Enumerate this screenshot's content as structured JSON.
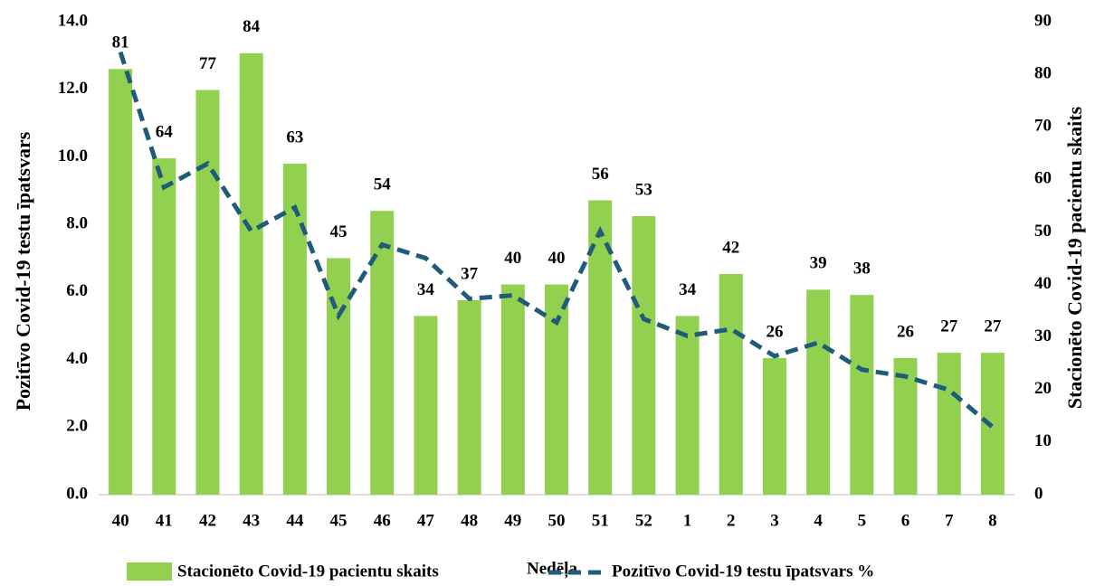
{
  "chart_data": {
    "type": "bar_line",
    "x_label": "Nedēļa",
    "y_label": "Pozitīvo Covid-19 testu īpatsvars",
    "y2_label": "Stacionēto Covid-19 pacientu skaits",
    "categories": [
      "40",
      "41",
      "42",
      "43",
      "44",
      "45",
      "46",
      "47",
      "48",
      "49",
      "50",
      "51",
      "52",
      "1",
      "2",
      "3",
      "4",
      "5",
      "6",
      "7",
      "8"
    ],
    "series": [
      {
        "name": "Stacionēto Covid-19 pacientu skaits",
        "type": "bar",
        "axis": "y2",
        "color": "#92d050",
        "values": [
          81,
          64,
          77,
          84,
          63,
          45,
          54,
          34,
          37,
          40,
          40,
          56,
          53,
          34,
          42,
          26,
          39,
          38,
          26,
          27,
          27
        ]
      },
      {
        "name": "Pozitīvo Covid-19 testu īpatsvars %",
        "type": "line",
        "axis": "y",
        "color": "#1f5c7a",
        "values": [
          13.1,
          9.1,
          9.8,
          7.8,
          8.5,
          5.3,
          7.4,
          7.0,
          5.8,
          5.9,
          5.1,
          7.8,
          5.2,
          4.7,
          4.9,
          4.1,
          4.5,
          3.7,
          3.5,
          3.1,
          2.0
        ]
      }
    ],
    "ylim": [
      0,
      14
    ],
    "yticks": [
      {
        "value": 0,
        "label": "0.0"
      },
      {
        "value": 2,
        "label": "2.0"
      },
      {
        "value": 4,
        "label": "4.0"
      },
      {
        "value": 6,
        "label": "6.0"
      },
      {
        "value": 8,
        "label": "8.0"
      },
      {
        "value": 10,
        "label": "10.0"
      },
      {
        "value": 12,
        "label": "12.0"
      },
      {
        "value": 14,
        "label": "14.0"
      }
    ],
    "y2lim": [
      0,
      90
    ],
    "y2ticks": [
      0,
      10,
      20,
      30,
      40,
      50,
      60,
      70,
      80,
      90
    ],
    "legend": "bottom"
  }
}
